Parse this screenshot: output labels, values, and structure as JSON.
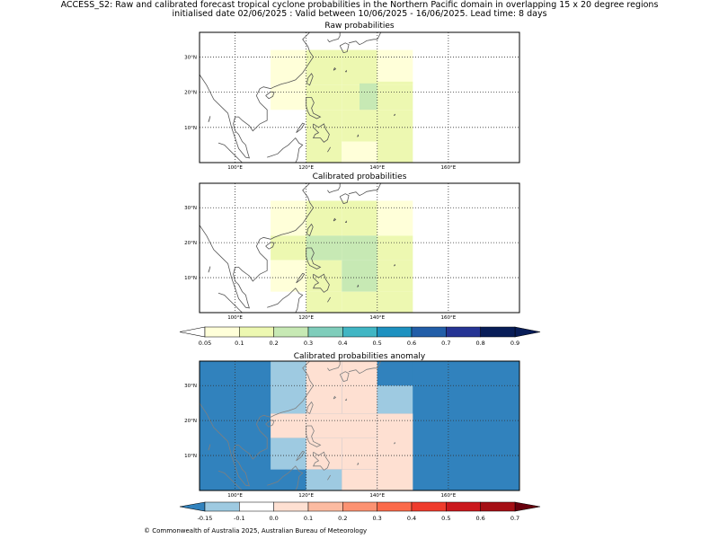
{
  "header": {
    "line1": "ACCESS_S2: Raw and calibrated forecast tropical cyclone probabilities in the Northern Pacific domain in overlapping 15 x 20 degree regions",
    "line2": "initialised date 02/06/2025 :  Valid between 10/06/2025 - 16/06/2025. Lead time: 8 days"
  },
  "footer": "© Commonwealth of Australia 2025, Australian Bureau of Meteorology",
  "map": {
    "lon_range": [
      90,
      180
    ],
    "lat_range": [
      0,
      37
    ],
    "lon_ticks": [
      100,
      120,
      140,
      160
    ],
    "lon_tick_labels": [
      "100°E",
      "120°E",
      "140°E",
      "160°E"
    ],
    "lat_ticks": [
      10,
      20,
      30
    ],
    "lat_tick_labels": [
      "10°N",
      "20°N",
      "30°N"
    ],
    "gridlines": "dotted"
  },
  "panels": [
    {
      "title": "Raw probabilities",
      "colorscale": "prob",
      "cells": [
        {
          "lon": [
            110,
            120
          ],
          "lat": [
            22,
            32
          ],
          "value": 0.07
        },
        {
          "lon": [
            120,
            130
          ],
          "lat": [
            22,
            32
          ],
          "value": 0.12
        },
        {
          "lon": [
            130,
            140
          ],
          "lat": [
            22,
            32
          ],
          "value": 0.12
        },
        {
          "lon": [
            140,
            150
          ],
          "lat": [
            22,
            32
          ],
          "value": 0.07
        },
        {
          "lon": [
            110,
            120
          ],
          "lat": [
            15,
            22
          ],
          "value": 0.07
        },
        {
          "lon": [
            120,
            130
          ],
          "lat": [
            15,
            22
          ],
          "value": 0.12
        },
        {
          "lon": [
            130,
            140
          ],
          "lat": [
            15,
            22
          ],
          "value": 0.12
        },
        {
          "lon": [
            140,
            150
          ],
          "lat": [
            15,
            22
          ],
          "value": 0.12
        },
        {
          "lon": [
            140,
            150
          ],
          "lat": [
            22,
            23
          ],
          "value": 0.12
        },
        {
          "lon": [
            120,
            130
          ],
          "lat": [
            6,
            15
          ],
          "value": 0.12
        },
        {
          "lon": [
            130,
            140
          ],
          "lat": [
            6,
            15
          ],
          "value": 0.12
        },
        {
          "lon": [
            140,
            150
          ],
          "lat": [
            6,
            15
          ],
          "value": 0.12
        },
        {
          "lon": [
            120,
            130
          ],
          "lat": [
            0,
            6
          ],
          "value": 0.12
        },
        {
          "lon": [
            130,
            140
          ],
          "lat": [
            0,
            6
          ],
          "value": 0.07
        },
        {
          "lon": [
            140,
            150
          ],
          "lat": [
            0,
            6
          ],
          "value": 0.12
        },
        {
          "lon": [
            135,
            140
          ],
          "lat": [
            15,
            22.5
          ],
          "value": 0.22
        }
      ]
    },
    {
      "title": "Calibrated probabilities",
      "colorscale": "prob",
      "cells": [
        {
          "lon": [
            110,
            120
          ],
          "lat": [
            22,
            32
          ],
          "value": 0.07
        },
        {
          "lon": [
            120,
            130
          ],
          "lat": [
            22,
            32
          ],
          "value": 0.12
        },
        {
          "lon": [
            130,
            140
          ],
          "lat": [
            22,
            32
          ],
          "value": 0.12
        },
        {
          "lon": [
            140,
            150
          ],
          "lat": [
            22,
            32
          ],
          "value": 0.07
        },
        {
          "lon": [
            110,
            120
          ],
          "lat": [
            15,
            22
          ],
          "value": 0.12
        },
        {
          "lon": [
            120,
            130
          ],
          "lat": [
            15,
            22
          ],
          "value": 0.12
        },
        {
          "lon": [
            130,
            140
          ],
          "lat": [
            15,
            22
          ],
          "value": 0.22
        },
        {
          "lon": [
            140,
            150
          ],
          "lat": [
            15,
            22
          ],
          "value": 0.12
        },
        {
          "lon": [
            130,
            140
          ],
          "lat": [
            6,
            15
          ],
          "value": 0.22
        },
        {
          "lon": [
            110,
            120
          ],
          "lat": [
            6,
            15
          ],
          "value": 0.07
        },
        {
          "lon": [
            120,
            130
          ],
          "lat": [
            6,
            15
          ],
          "value": 0.12
        },
        {
          "lon": [
            140,
            150
          ],
          "lat": [
            6,
            15
          ],
          "value": 0.12
        },
        {
          "lon": [
            120,
            130
          ],
          "lat": [
            0,
            6
          ],
          "value": 0.12
        },
        {
          "lon": [
            130,
            140
          ],
          "lat": [
            0,
            6
          ],
          "value": 0.12
        },
        {
          "lon": [
            140,
            150
          ],
          "lat": [
            0,
            6
          ],
          "value": 0.12
        },
        {
          "lon": [
            120,
            130
          ],
          "lat": [
            15,
            22
          ],
          "value": 0.22
        },
        {
          "lon": [
            110,
            120
          ],
          "lat": [
            22,
            22
          ],
          "value": 0.07
        }
      ]
    },
    {
      "title": "Calibrated probabilities anomaly",
      "colorscale": "anom",
      "background_value": -0.2,
      "cells": [
        {
          "lon": [
            110,
            120
          ],
          "lat": [
            22,
            37
          ],
          "value": -0.12
        },
        {
          "lon": [
            120,
            130
          ],
          "lat": [
            22,
            37
          ],
          "value": 0.0
        },
        {
          "lon": [
            130,
            140
          ],
          "lat": [
            22,
            37
          ],
          "value": 0.0
        },
        {
          "lon": [
            140,
            150
          ],
          "lat": [
            22,
            37
          ],
          "value": -0.2
        },
        {
          "lon": [
            140,
            150
          ],
          "lat": [
            22,
            30
          ],
          "value": -0.12
        },
        {
          "lon": [
            150,
            180
          ],
          "lat": [
            0,
            37
          ],
          "value": -0.2
        },
        {
          "lon": [
            110,
            120
          ],
          "lat": [
            15,
            22
          ],
          "value": 0.0
        },
        {
          "lon": [
            120,
            140
          ],
          "lat": [
            15,
            22
          ],
          "value": 0.05
        },
        {
          "lon": [
            140,
            150
          ],
          "lat": [
            0,
            22
          ],
          "value": 0.0
        },
        {
          "lon": [
            110,
            120
          ],
          "lat": [
            6,
            15
          ],
          "value": -0.12
        },
        {
          "lon": [
            120,
            130
          ],
          "lat": [
            6,
            15
          ],
          "value": 0.0
        },
        {
          "lon": [
            130,
            140
          ],
          "lat": [
            6,
            15
          ],
          "value": 0.05
        },
        {
          "lon": [
            120,
            130
          ],
          "lat": [
            0,
            6
          ],
          "value": -0.12
        },
        {
          "lon": [
            130,
            140
          ],
          "lat": [
            0,
            6
          ],
          "value": 0.0
        }
      ]
    }
  ],
  "colorbars": {
    "prob": {
      "boundaries": [
        0.05,
        0.1,
        0.2,
        0.3,
        0.4,
        0.5,
        0.6,
        0.7,
        0.8,
        0.9
      ],
      "labels": [
        "0.05",
        "0.1",
        "0.2",
        "0.3",
        "0.4",
        "0.5",
        "0.6",
        "0.7",
        "0.8",
        "0.9"
      ],
      "colors": [
        "#ffffd9",
        "#edf8b1",
        "#c7e9b4",
        "#7fcdbb",
        "#41b6c4",
        "#1d91c0",
        "#225ea8",
        "#253494",
        "#081d58"
      ],
      "under_color": "#ffffff",
      "over_color": "#081d58"
    },
    "anom": {
      "boundaries": [
        -0.15,
        -0.1,
        0.0,
        0.1,
        0.2,
        0.3,
        0.4,
        0.5,
        0.6,
        0.7
      ],
      "labels": [
        "-0.15",
        "-0.1",
        "0.0",
        "0.1",
        "0.2",
        "0.3",
        "0.4",
        "0.5",
        "0.6",
        "0.7"
      ],
      "colors": [
        "#9ecae1",
        "#ffffff",
        "#fee0d2",
        "#fcbba1",
        "#fc9272",
        "#fb6a4a",
        "#ef3b2c",
        "#cb181d",
        "#a50f15"
      ],
      "under_color": "#3182bd",
      "over_color": "#67000d"
    }
  }
}
